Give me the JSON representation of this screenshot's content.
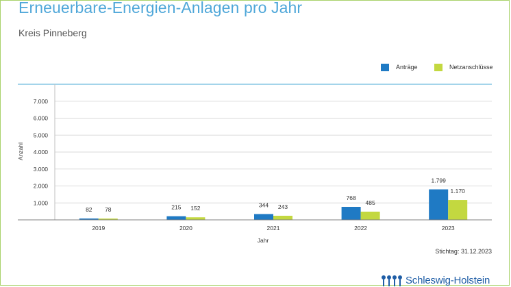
{
  "header": {
    "title": "Erneuerbare-Energien-Anlagen pro Jahr",
    "subtitle": "Kreis Pinneberg"
  },
  "footer": {
    "stichtag": "Stichtag: 31.12.2023",
    "logo_text": "Schleswig-Holstein"
  },
  "colors": {
    "antraege": "#1f7ac4",
    "netzanschluesse": "#c3d840",
    "title": "#4fa7d9",
    "frame": "#a8d26a",
    "axis_line": "#49a9d6"
  },
  "chart_data": {
    "type": "bar",
    "title": "Erneuerbare-Energien-Anlagen pro Jahr",
    "subtitle": "Kreis Pinneberg",
    "xlabel": "Jahr",
    "ylabel": "Anzahl",
    "ylim": [
      0,
      8000
    ],
    "yticks": [
      1000,
      2000,
      3000,
      4000,
      5000,
      6000,
      7000
    ],
    "ytick_labels": [
      "1.000",
      "2.000",
      "3.000",
      "4.000",
      "5.000",
      "6.000",
      "7.000"
    ],
    "grid": true,
    "legend_position": "top-right",
    "categories": [
      "2019",
      "2020",
      "2021",
      "2022",
      "2023"
    ],
    "series": [
      {
        "name": "Anträge",
        "values": [
          82,
          215,
          344,
          768,
          1799
        ],
        "labels": [
          "82",
          "215",
          "344",
          "768",
          "1.799"
        ]
      },
      {
        "name": "Netzanschlüsse",
        "values": [
          78,
          152,
          243,
          485,
          1170
        ],
        "labels": [
          "78",
          "152",
          "243",
          "485",
          "1.170"
        ]
      }
    ]
  }
}
